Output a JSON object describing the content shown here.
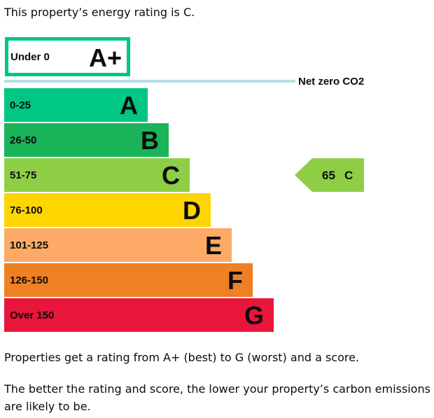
{
  "intro": "This property’s energy rating is C.",
  "chart_data": {
    "type": "bar",
    "title": "",
    "bands": [
      {
        "range": "Under 0",
        "letter": "A+",
        "color": "#ffffff",
        "border": "#00c781"
      },
      {
        "range": "0-25",
        "letter": "A",
        "color": "#00c781"
      },
      {
        "range": "26-50",
        "letter": "B",
        "color": "#19b459"
      },
      {
        "range": "51-75",
        "letter": "C",
        "color": "#8dce46"
      },
      {
        "range": "76-100",
        "letter": "D",
        "color": "#ffd500"
      },
      {
        "range": "101-125",
        "letter": "E",
        "color": "#fcaa65"
      },
      {
        "range": "126-150",
        "letter": "F",
        "color": "#ef8023"
      },
      {
        "range": "Over 150",
        "letter": "G",
        "color": "#e9153b"
      }
    ],
    "net_zero": {
      "label": "Net zero CO2",
      "color": "#b6dde2"
    },
    "current": {
      "score": "65",
      "band": "C",
      "color": "#8dce46"
    }
  },
  "para1": "Properties get a rating from A+ (best) to G (worst) and a score.",
  "para2": "The better the rating and score, the lower your property’s carbon emissions are likely to be."
}
